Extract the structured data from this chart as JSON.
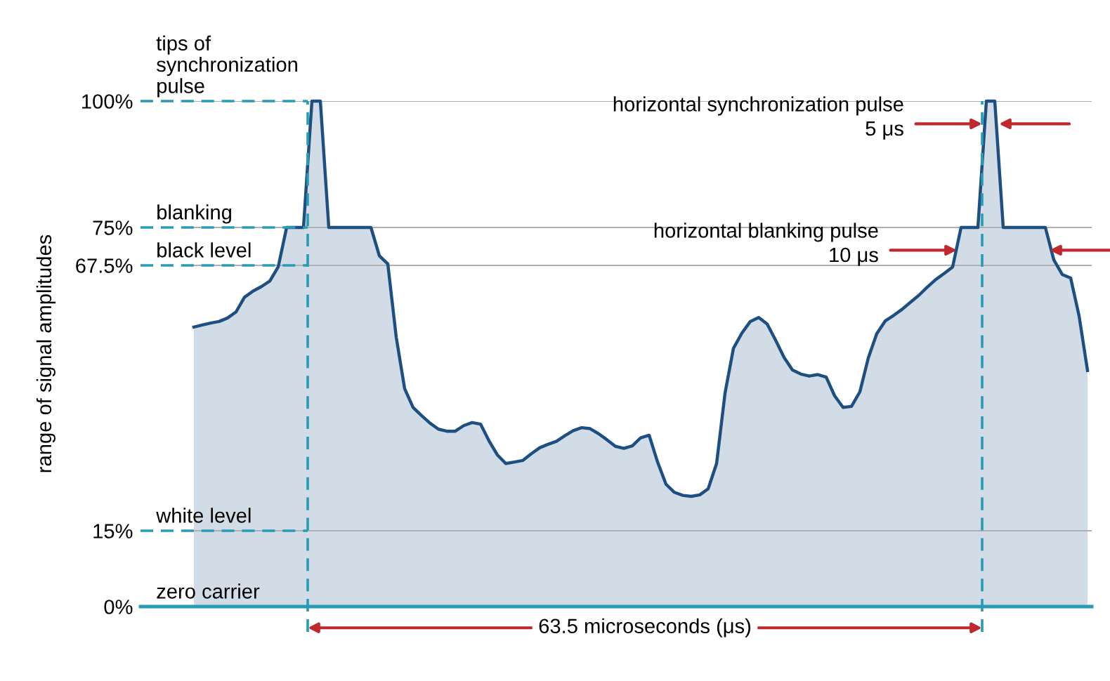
{
  "chart_data": {
    "type": "area",
    "ylabel": "range of signal amplitudes",
    "categories": [
      null,
      null,
      null,
      null,
      null,
      null,
      null,
      null,
      null,
      null,
      null,
      null,
      null,
      null,
      null,
      null,
      null,
      null,
      null,
      null,
      null,
      null,
      null,
      null,
      null,
      null,
      null,
      null,
      null,
      null,
      null,
      null,
      null,
      null,
      null,
      null,
      null,
      null,
      null,
      null,
      null,
      null,
      null,
      null,
      null,
      null,
      null,
      null,
      null,
      null,
      null,
      null,
      null,
      null,
      null,
      null,
      null,
      null,
      null,
      null,
      null,
      null,
      null,
      null,
      null,
      null,
      null,
      null,
      null,
      null,
      null,
      null,
      null,
      null,
      null,
      null,
      null,
      null,
      null,
      null,
      null,
      null,
      null,
      null,
      null,
      null,
      null,
      null,
      null,
      null,
      null,
      null,
      null,
      null,
      null,
      null,
      null,
      null,
      null,
      null,
      null,
      null,
      null,
      null,
      null,
      null,
      null
    ],
    "series": [
      {
        "color": "#1d4f80",
        "values": [
          55.3,
          55.7,
          56.1,
          56.4,
          57.1,
          58.3,
          61.2,
          62.4,
          63.3,
          64.4,
          67.2,
          75,
          75,
          75,
          100,
          100,
          75,
          75,
          75,
          75,
          75,
          75,
          69.4,
          67.8,
          53.3,
          43.1,
          39.4,
          37.8,
          36.3,
          35.1,
          34.7,
          34.7,
          35.8,
          36.4,
          36.1,
          32.8,
          30.0,
          28.3,
          28.6,
          28.9,
          30.2,
          31.4,
          32.1,
          32.7,
          33.8,
          34.8,
          35.4,
          35.2,
          34.2,
          33.0,
          31.7,
          31.3,
          31.8,
          33.4,
          33.9,
          28.6,
          24.2,
          22.6,
          22.0,
          21.8,
          22.1,
          23.3,
          28.3,
          42.2,
          51.1,
          54.1,
          56.4,
          57.2,
          55.9,
          52.7,
          49.3,
          46.8,
          46.0,
          45.6,
          45.9,
          45.4,
          41.7,
          39.4,
          39.6,
          42.5,
          49.2,
          54.0,
          56.5,
          57.6,
          58.8,
          60.2,
          61.6,
          63.2,
          64.7,
          65.9,
          67.2,
          75,
          75,
          75,
          100,
          100,
          75,
          75,
          75,
          75,
          75,
          75,
          68.6,
          65.7,
          65.0,
          57.5,
          46.7
        ]
      }
    ],
    "ylim": [
      0,
      100
    ],
    "yticks": [
      {
        "value": 0,
        "label": "0%"
      },
      {
        "value": 15,
        "label": "15%"
      },
      {
        "value": 67.5,
        "label": "67.5%"
      },
      {
        "value": 75,
        "label": "75%"
      },
      {
        "value": 100,
        "label": "100%"
      }
    ],
    "tick_labels": "y",
    "ref_lines": [
      {
        "axis": "y",
        "value": 0,
        "color": "#2a9bb5",
        "line_style": "solid"
      }
    ],
    "annotations": [
      "tips of\nsynchronization\npulse",
      "blanking",
      "black level",
      "white level",
      "zero carrier",
      "horizontal synchronization pulse\n5 μs",
      "horizontal blanking pulse\n10 μs",
      "63.5 microseconds (μs)"
    ],
    "grid": "y"
  }
}
